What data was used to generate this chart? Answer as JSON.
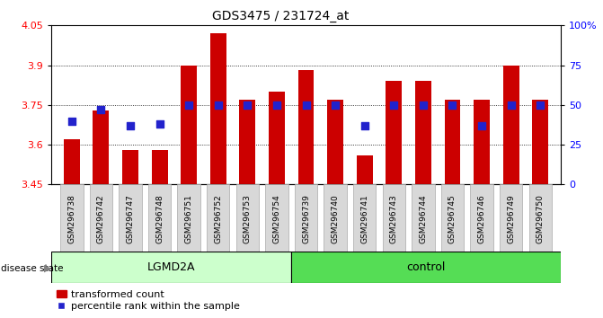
{
  "title": "GDS3475 / 231724_at",
  "samples": [
    "GSM296738",
    "GSM296742",
    "GSM296747",
    "GSM296748",
    "GSM296751",
    "GSM296752",
    "GSM296753",
    "GSM296754",
    "GSM296739",
    "GSM296740",
    "GSM296741",
    "GSM296743",
    "GSM296744",
    "GSM296745",
    "GSM296746",
    "GSM296749",
    "GSM296750"
  ],
  "bar_values": [
    3.62,
    3.73,
    3.58,
    3.58,
    3.9,
    4.02,
    3.77,
    3.8,
    3.88,
    3.77,
    3.56,
    3.84,
    3.84,
    3.77,
    3.77,
    3.9,
    3.77
  ],
  "dot_percentiles": [
    40,
    47,
    37,
    38,
    50,
    50,
    50,
    50,
    50,
    50,
    37,
    50,
    50,
    50,
    37,
    50,
    50
  ],
  "lgmd2a_count": 8,
  "ylim_left": [
    3.45,
    4.05
  ],
  "ylim_right": [
    0,
    100
  ],
  "yticks_left": [
    3.45,
    3.6,
    3.75,
    3.9,
    4.05
  ],
  "yticks_right": [
    0,
    25,
    50,
    75,
    100
  ],
  "grid_values": [
    3.6,
    3.75,
    3.9
  ],
  "bar_color": "#cc0000",
  "dot_color": "#2222cc",
  "lgmd2a_color": "#ccffcc",
  "control_color": "#55dd55",
  "plot_bg": "#ffffff",
  "legend_items": [
    "transformed count",
    "percentile rank within the sample"
  ],
  "base_value": 3.45
}
